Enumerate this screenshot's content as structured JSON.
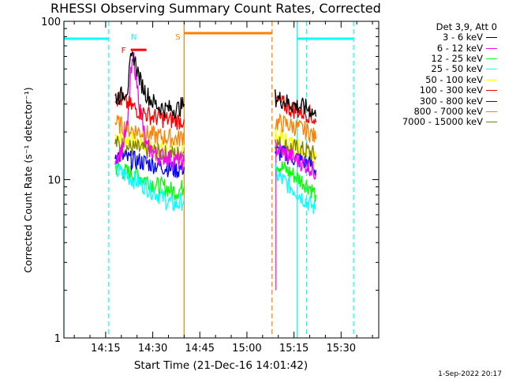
{
  "title": "RHESSI Observing Summary Count Rates, Corrected",
  "timestamp": "1-Sep-2022 20:17",
  "legend_header": "Det 3,9, Att 0",
  "chart_data": {
    "type": "line",
    "title": "RHESSI Observing Summary Count Rates, Corrected",
    "xlabel": "Start Time (21-Dec-16 14:01:42)",
    "ylabel": "Corrected Count Rate (s⁻¹ detector⁻¹)",
    "y_scale": "log",
    "xlim": [
      "14:01:42",
      "15:42:00"
    ],
    "ylim": [
      1,
      100
    ],
    "x_ticks": [
      "14:15",
      "14:30",
      "14:45",
      "15:00",
      "15:15",
      "15:30"
    ],
    "y_ticks": [
      "1",
      "10",
      "100"
    ],
    "legend_position": "right",
    "grid": false,
    "series": [
      {
        "name": "3 - 6 keV",
        "color": "#000000",
        "x": [
          "14:18",
          "14:20",
          "14:22",
          "14:23",
          "14:24",
          "14:26",
          "14:28",
          "14:30",
          "14:32",
          "14:34",
          "14:36",
          "14:38",
          "14:39",
          "14:40",
          "15:09",
          "15:11",
          "15:14",
          "15:17",
          "15:20",
          "15:22"
        ],
        "y": [
          33,
          34,
          38,
          55,
          60,
          42,
          35,
          31,
          29,
          28,
          28,
          28,
          29,
          30,
          33,
          32,
          30,
          29,
          28,
          25
        ]
      },
      {
        "name": "6 - 12 keV",
        "color": "#ff00ff",
        "x": [
          "14:18",
          "14:20",
          "14:22",
          "14:23",
          "14:24",
          "14:26",
          "14:28",
          "14:30",
          "14:32",
          "14:34",
          "14:36",
          "14:38",
          "14:39",
          "14:40",
          "15:09",
          "15:11",
          "15:14",
          "15:17",
          "15:20",
          "15:22"
        ],
        "y": [
          14,
          15,
          22,
          45,
          58,
          28,
          16,
          15,
          14,
          14,
          13.5,
          13,
          13,
          13,
          16,
          15,
          14,
          13,
          12,
          11
        ]
      },
      {
        "name": "12 - 25 keV",
        "color": "#00ff00",
        "x": [
          "14:18",
          "14:20",
          "14:22",
          "14:24",
          "14:26",
          "14:28",
          "14:30",
          "14:32",
          "14:34",
          "14:36",
          "14:38",
          "14:40",
          "15:09",
          "15:11",
          "15:14",
          "15:17",
          "15:20",
          "15:22"
        ],
        "y": [
          12,
          11.5,
          11,
          11,
          10.5,
          10,
          9.5,
          9,
          9,
          8.5,
          8.5,
          9,
          13,
          12,
          11,
          10,
          9,
          8
        ]
      },
      {
        "name": "25 - 50 keV",
        "color": "#00ffff",
        "x": [
          "14:18",
          "14:20",
          "14:22",
          "14:24",
          "14:26",
          "14:28",
          "14:30",
          "14:32",
          "14:34",
          "14:36",
          "14:38",
          "14:40",
          "15:09",
          "15:11",
          "15:14",
          "15:17",
          "15:20",
          "15:22"
        ],
        "y": [
          11.5,
          11,
          10.5,
          10,
          9.5,
          9,
          8.5,
          8,
          7.5,
          7,
          7,
          7.5,
          11,
          10,
          9,
          8,
          7,
          6.5
        ]
      },
      {
        "name": "50 - 100 keV",
        "color": "#ffff00",
        "x": [
          "14:18",
          "14:22",
          "14:26",
          "14:30",
          "14:34",
          "14:38",
          "14:40",
          "15:09",
          "15:14",
          "15:20",
          "15:22"
        ],
        "y": [
          19,
          18,
          17,
          16,
          15.5,
          15,
          16,
          19,
          17,
          15,
          14
        ]
      },
      {
        "name": "100 - 300 keV",
        "color": "#ff0000",
        "x": [
          "14:18",
          "14:22",
          "14:26",
          "14:30",
          "14:34",
          "14:38",
          "14:40",
          "15:09",
          "15:14",
          "15:20",
          "15:22"
        ],
        "y": [
          34,
          30,
          27,
          25,
          24,
          23.5,
          24,
          32,
          28,
          26,
          23
        ]
      },
      {
        "name": "300 - 800 keV",
        "color": "#0000ff",
        "x": [
          "14:18",
          "14:22",
          "14:26",
          "14:30",
          "14:34",
          "14:38",
          "14:40",
          "15:09",
          "15:14",
          "15:20",
          "15:22"
        ],
        "y": [
          14.5,
          13.5,
          13,
          12.5,
          12,
          11.5,
          12,
          15,
          14,
          12.5,
          11.5
        ]
      },
      {
        "name": "800 - 7000 keV",
        "color": "#ff8000",
        "x": [
          "14:18",
          "14:22",
          "14:26",
          "14:30",
          "14:34",
          "14:38",
          "14:40",
          "15:09",
          "15:14",
          "15:20",
          "15:22"
        ],
        "y": [
          23,
          21,
          20,
          19,
          18.5,
          18,
          19,
          23,
          22,
          20,
          18
        ]
      },
      {
        "name": "7000 - 15000 keV",
        "color": "#808000",
        "x": [
          "14:18",
          "14:22",
          "14:26",
          "14:30",
          "14:34",
          "14:38",
          "14:40",
          "15:09",
          "15:14",
          "15:20",
          "15:22"
        ],
        "y": [
          17,
          16,
          15.5,
          15,
          14.5,
          14.5,
          15,
          17,
          16,
          15,
          14
        ]
      }
    ],
    "annotations": {
      "night_intervals": [
        [
          "14:01:42",
          "14:16"
        ],
        [
          "15:16",
          "15:34"
        ]
      ],
      "saa_interval": [
        "14:40",
        "15:08"
      ],
      "flare_marker": {
        "label": "F",
        "x": [
          "14:23",
          "14:28"
        ],
        "y": 66
      },
      "labels": [
        {
          "text": "N",
          "x": "14:24"
        },
        {
          "text": "S",
          "x": "14:38"
        }
      ],
      "vertical_lines": [
        {
          "x": "14:01:42",
          "color": "#00ffff",
          "style": "solid"
        },
        {
          "x": "14:16",
          "color": "#00ffff",
          "style": "dashed"
        },
        {
          "x": "14:40",
          "color": "#ff8000",
          "style": "solid"
        },
        {
          "x": "15:08",
          "color": "#ff8000",
          "style": "dashed"
        },
        {
          "x": "15:16",
          "color": "#00ffff",
          "style": "solid"
        },
        {
          "x": "15:19",
          "color": "#00ffff",
          "style": "dashed"
        },
        {
          "x": "15:34",
          "color": "#00ffff",
          "style": "dashed"
        }
      ],
      "attenuator_spike": {
        "x": "15:08",
        "y_low": 2,
        "y_high": 16
      }
    }
  }
}
